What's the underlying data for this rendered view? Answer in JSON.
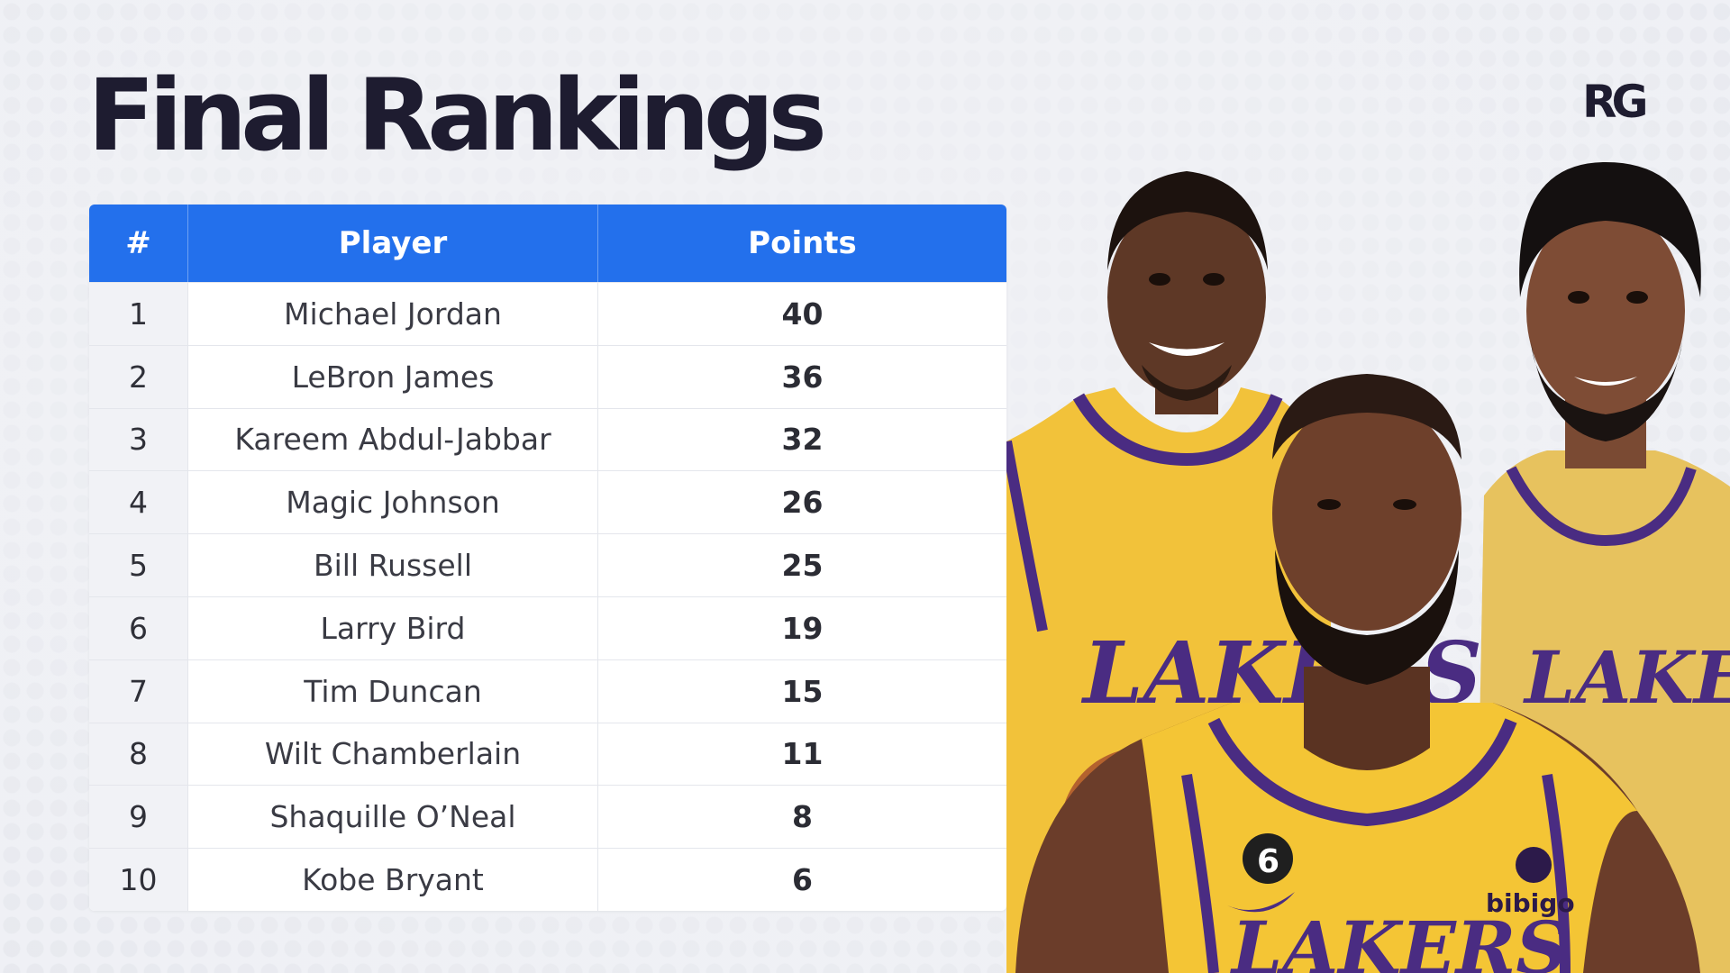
{
  "page": {
    "title": "Final Rankings",
    "logo_text": "RG"
  },
  "table": {
    "headers": [
      "#",
      "Player",
      "Points"
    ],
    "rows": [
      {
        "rank": "1",
        "player": "Michael Jordan",
        "points": "40"
      },
      {
        "rank": "2",
        "player": "LeBron James",
        "points": "36"
      },
      {
        "rank": "3",
        "player": "Kareem Abdul-Jabbar",
        "points": "32"
      },
      {
        "rank": "4",
        "player": "Magic Johnson",
        "points": "26"
      },
      {
        "rank": "5",
        "player": "Bill Russell",
        "points": "25"
      },
      {
        "rank": "6",
        "player": "Larry Bird",
        "points": "19"
      },
      {
        "rank": "7",
        "player": "Tim Duncan",
        "points": "15"
      },
      {
        "rank": "8",
        "player": "Wilt Chamberlain",
        "points": "11"
      },
      {
        "rank": "9",
        "player": "Shaquille O’Neal",
        "points": "8"
      },
      {
        "rank": "10",
        "player": "Kobe Bryant",
        "points": "6"
      }
    ]
  },
  "photo": {
    "jersey_text": "LAKERS",
    "jersey_number": "6",
    "sponsor_text": "bibigo"
  },
  "colors": {
    "header_blue": "#2370ec",
    "title_dark": "#1e1c30",
    "lakers_gold": "#f2c23a",
    "lakers_purple": "#4a2c82"
  }
}
